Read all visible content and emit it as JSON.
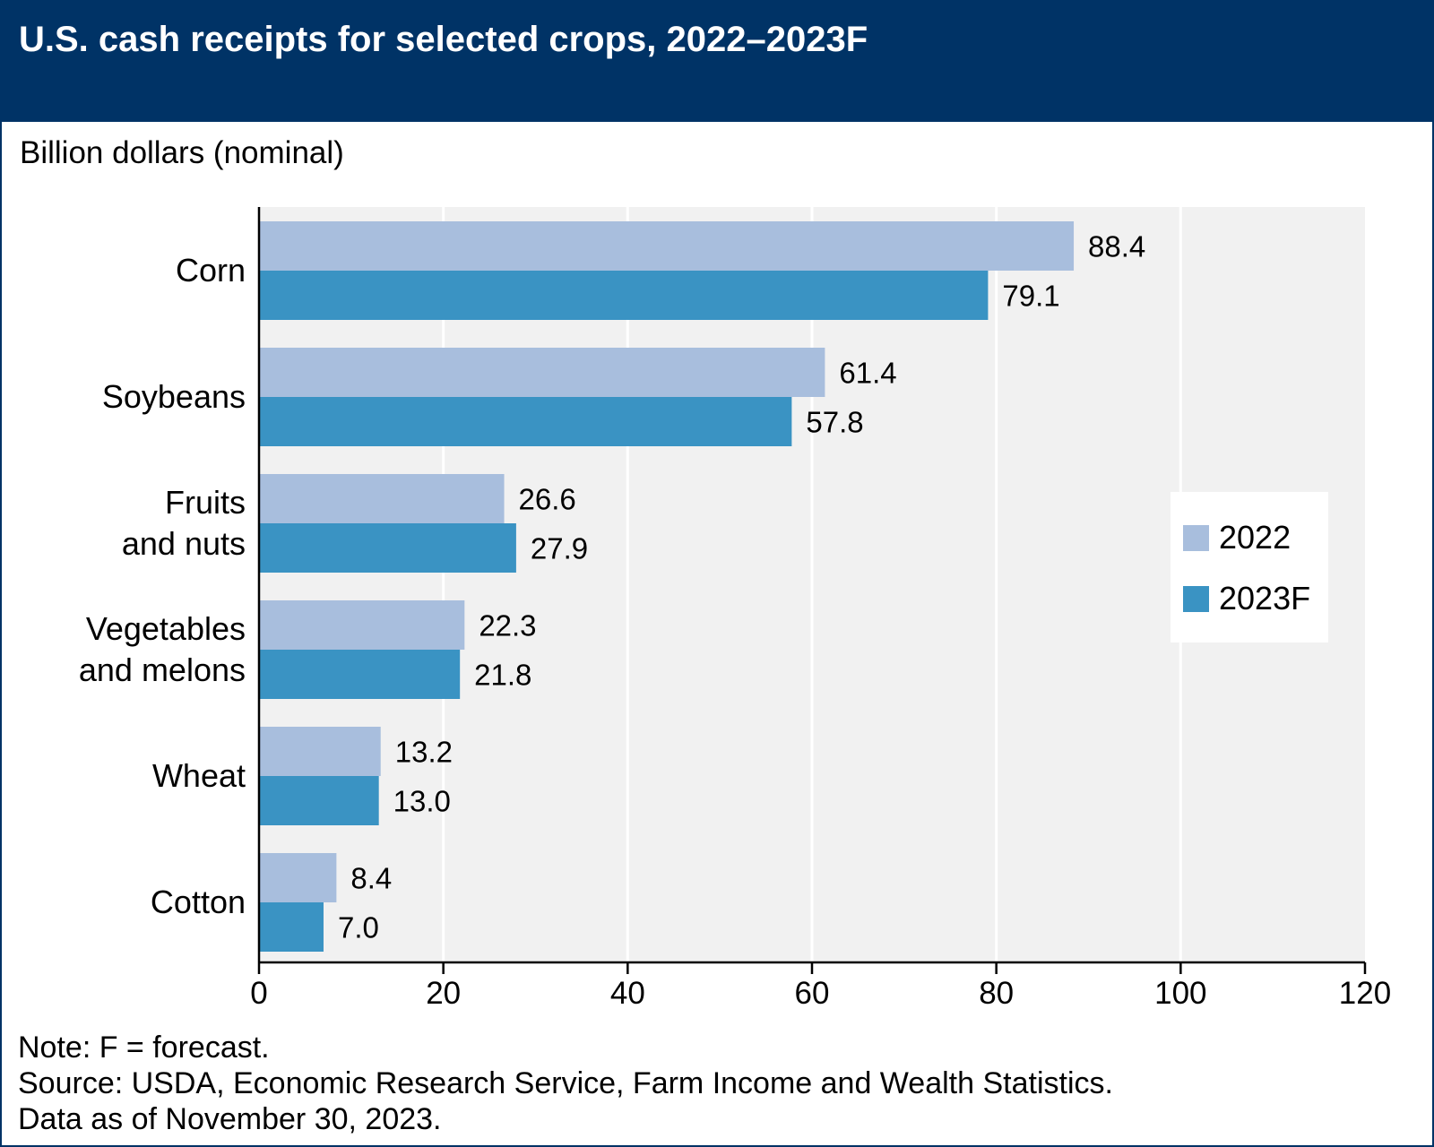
{
  "title": "U.S. cash receipts for selected crops, 2022–2023F",
  "unit_label": "Billion dollars (nominal)",
  "footnotes": {
    "note": "Note: F = forecast.",
    "source": "Source: USDA, Economic Research Service, Farm Income and Wealth Statistics.",
    "as_of": "Data as of November 30, 2023."
  },
  "colors": {
    "header_bg": "#003366",
    "plot_bg": "#f1f1f1",
    "series_2022": "#a8bedd",
    "series_2023F": "#3a93c3"
  },
  "legend": {
    "items": [
      {
        "label": "2022",
        "color": "#a8bedd"
      },
      {
        "label": "2023F",
        "color": "#3a93c3"
      }
    ]
  },
  "chart_data": {
    "type": "bar",
    "orientation": "horizontal",
    "categories": [
      [
        "Corn"
      ],
      [
        "Soybeans"
      ],
      [
        "Fruits",
        "and nuts"
      ],
      [
        "Vegetables",
        "and melons"
      ],
      [
        "Wheat"
      ],
      [
        "Cotton"
      ]
    ],
    "series": [
      {
        "name": "2022",
        "values": [
          88.4,
          61.4,
          26.6,
          22.3,
          13.2,
          8.4
        ],
        "labels": [
          "88.4",
          "61.4",
          "26.6",
          "22.3",
          "13.2",
          "8.4"
        ]
      },
      {
        "name": "2023F",
        "values": [
          79.1,
          57.8,
          27.9,
          21.8,
          13.0,
          7.0
        ],
        "labels": [
          "79.1",
          "57.8",
          "27.9",
          "21.8",
          "13.0",
          "7.0"
        ]
      }
    ],
    "xlim": [
      0,
      120
    ],
    "xticks": [
      0,
      20,
      40,
      60,
      80,
      100,
      120
    ],
    "grid": true,
    "legend_position": "right"
  }
}
